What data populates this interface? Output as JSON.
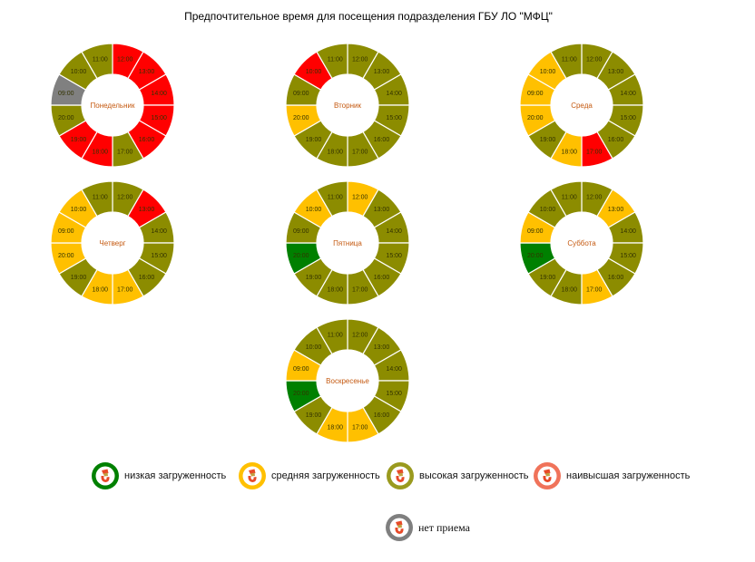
{
  "colors": {
    "low": "#008000",
    "medium": "#FFC000",
    "high": "#8C8C00",
    "highest": "#FF0000",
    "none": "#808080",
    "segment_label": "#333300",
    "day_label": "#C55A11",
    "segment_border": "#ffffff"
  },
  "legend_icon_colors": {
    "low": "#008000",
    "medium": "#FFC000",
    "high": "#9A9A1E",
    "highest": "#F0735A",
    "none": "#7F7F7F"
  },
  "legend": [
    {
      "key": "low",
      "label": "низкая загруженность"
    },
    {
      "key": "medium",
      "label": "средняя загруженность"
    },
    {
      "key": "high",
      "label": "высокая загруженность"
    },
    {
      "key": "highest",
      "label": "наивысшая загруженность"
    },
    {
      "key": "none",
      "label": "нет приема"
    }
  ],
  "chart_data": {
    "type": "donut",
    "title": "Предпочтительное время для посещения подразделения ГБУ ЛО \"МФЦ\"",
    "charts": [
      {
        "name": "Понедельник",
        "segments": [
          {
            "hour": "12:00",
            "level": "highest"
          },
          {
            "hour": "13:00",
            "level": "highest"
          },
          {
            "hour": "14:00",
            "level": "highest"
          },
          {
            "hour": "15:00",
            "level": "highest"
          },
          {
            "hour": "16:00",
            "level": "highest"
          },
          {
            "hour": "17:00",
            "level": "high"
          },
          {
            "hour": "18:00",
            "level": "highest"
          },
          {
            "hour": "19:00",
            "level": "highest"
          },
          {
            "hour": "20:00",
            "level": "high"
          },
          {
            "hour": "09:00",
            "level": "none"
          },
          {
            "hour": "10:00",
            "level": "high"
          },
          {
            "hour": "11:00",
            "level": "high"
          }
        ]
      },
      {
        "name": "Вторник",
        "segments": [
          {
            "hour": "12:00",
            "level": "high"
          },
          {
            "hour": "13:00",
            "level": "high"
          },
          {
            "hour": "14:00",
            "level": "high"
          },
          {
            "hour": "15:00",
            "level": "high"
          },
          {
            "hour": "16:00",
            "level": "high"
          },
          {
            "hour": "17:00",
            "level": "high"
          },
          {
            "hour": "18:00",
            "level": "high"
          },
          {
            "hour": "19:00",
            "level": "high"
          },
          {
            "hour": "20:00",
            "level": "medium"
          },
          {
            "hour": "09:00",
            "level": "high"
          },
          {
            "hour": "10:00",
            "level": "highest"
          },
          {
            "hour": "11:00",
            "level": "high"
          }
        ]
      },
      {
        "name": "Среда",
        "segments": [
          {
            "hour": "12:00",
            "level": "high"
          },
          {
            "hour": "13:00",
            "level": "high"
          },
          {
            "hour": "14:00",
            "level": "high"
          },
          {
            "hour": "15:00",
            "level": "high"
          },
          {
            "hour": "16:00",
            "level": "high"
          },
          {
            "hour": "17:00",
            "level": "highest"
          },
          {
            "hour": "18:00",
            "level": "medium"
          },
          {
            "hour": "19:00",
            "level": "high"
          },
          {
            "hour": "20:00",
            "level": "medium"
          },
          {
            "hour": "09:00",
            "level": "medium"
          },
          {
            "hour": "10:00",
            "level": "medium"
          },
          {
            "hour": "11:00",
            "level": "high"
          }
        ]
      },
      {
        "name": "Четверг",
        "segments": [
          {
            "hour": "12:00",
            "level": "high"
          },
          {
            "hour": "13:00",
            "level": "highest"
          },
          {
            "hour": "14:00",
            "level": "high"
          },
          {
            "hour": "15:00",
            "level": "high"
          },
          {
            "hour": "16:00",
            "level": "high"
          },
          {
            "hour": "17:00",
            "level": "medium"
          },
          {
            "hour": "18:00",
            "level": "medium"
          },
          {
            "hour": "19:00",
            "level": "high"
          },
          {
            "hour": "20:00",
            "level": "medium"
          },
          {
            "hour": "09:00",
            "level": "medium"
          },
          {
            "hour": "10:00",
            "level": "medium"
          },
          {
            "hour": "11:00",
            "level": "high"
          }
        ]
      },
      {
        "name": "Пятница",
        "segments": [
          {
            "hour": "12:00",
            "level": "medium"
          },
          {
            "hour": "13:00",
            "level": "high"
          },
          {
            "hour": "14:00",
            "level": "high"
          },
          {
            "hour": "15:00",
            "level": "high"
          },
          {
            "hour": "16:00",
            "level": "high"
          },
          {
            "hour": "17:00",
            "level": "high"
          },
          {
            "hour": "18:00",
            "level": "high"
          },
          {
            "hour": "19:00",
            "level": "high"
          },
          {
            "hour": "20:00",
            "level": "low"
          },
          {
            "hour": "09:00",
            "level": "high"
          },
          {
            "hour": "10:00",
            "level": "medium"
          },
          {
            "hour": "11:00",
            "level": "high"
          }
        ]
      },
      {
        "name": "Суббота",
        "segments": [
          {
            "hour": "12:00",
            "level": "high"
          },
          {
            "hour": "13:00",
            "level": "medium"
          },
          {
            "hour": "14:00",
            "level": "high"
          },
          {
            "hour": "15:00",
            "level": "high"
          },
          {
            "hour": "16:00",
            "level": "high"
          },
          {
            "hour": "17:00",
            "level": "medium"
          },
          {
            "hour": "18:00",
            "level": "high"
          },
          {
            "hour": "19:00",
            "level": "high"
          },
          {
            "hour": "20:00",
            "level": "low"
          },
          {
            "hour": "09:00",
            "level": "medium"
          },
          {
            "hour": "10:00",
            "level": "high"
          },
          {
            "hour": "11:00",
            "level": "high"
          }
        ]
      },
      {
        "name": "Воскресенье",
        "segments": [
          {
            "hour": "12:00",
            "level": "high"
          },
          {
            "hour": "13:00",
            "level": "high"
          },
          {
            "hour": "14:00",
            "level": "high"
          },
          {
            "hour": "15:00",
            "level": "high"
          },
          {
            "hour": "16:00",
            "level": "high"
          },
          {
            "hour": "17:00",
            "level": "medium"
          },
          {
            "hour": "18:00",
            "level": "medium"
          },
          {
            "hour": "19:00",
            "level": "high"
          },
          {
            "hour": "20:00",
            "level": "low"
          },
          {
            "hour": "09:00",
            "level": "medium"
          },
          {
            "hour": "10:00",
            "level": "high"
          },
          {
            "hour": "11:00",
            "level": "high"
          }
        ]
      }
    ]
  }
}
